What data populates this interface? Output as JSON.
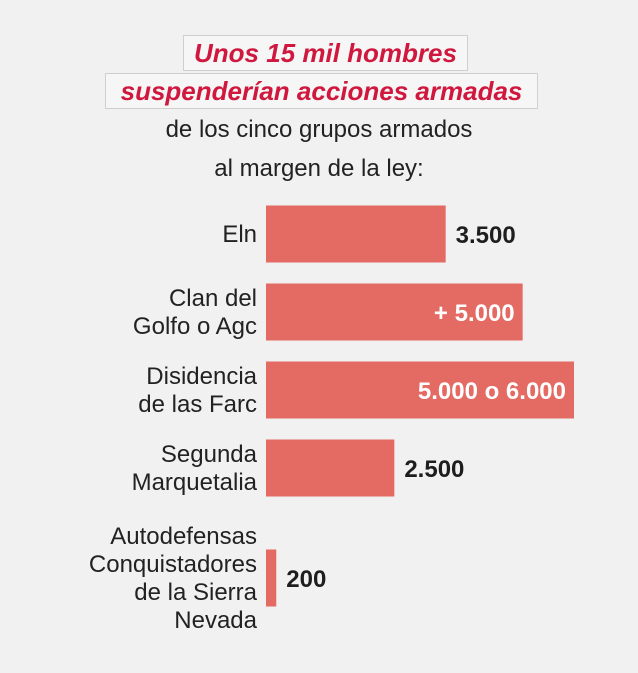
{
  "heading": {
    "line1": "Unos 15 mil hombres",
    "line2": "suspenderían acciones armadas",
    "line3": "de los cinco grupos armados",
    "line4": "al margen de la ley:"
  },
  "colors": {
    "bar": "#e46b63",
    "highlight_text": "#d0183f",
    "outside_value": "#1e1e1e",
    "inside_value": "#ffffff"
  },
  "chart_data": {
    "type": "bar",
    "orientation": "horizontal",
    "categories": [
      [
        "Eln"
      ],
      [
        "Clan del",
        "Golfo o Agc"
      ],
      [
        "Disidencia",
        "de las Farc"
      ],
      [
        "Segunda",
        "Marquetalia"
      ],
      [
        "Autodefensas",
        "Conquistadores",
        "de la Sierra",
        "Nevada"
      ]
    ],
    "values": [
      3500,
      5000,
      6000,
      2500,
      200
    ],
    "value_labels": [
      "3.500",
      "+ 5.000",
      "5.000 o 6.000",
      "2.500",
      "200"
    ],
    "value_label_inside": [
      false,
      true,
      true,
      false,
      false
    ],
    "xlim": [
      0,
      6000
    ],
    "grid": false,
    "legend": "none"
  }
}
